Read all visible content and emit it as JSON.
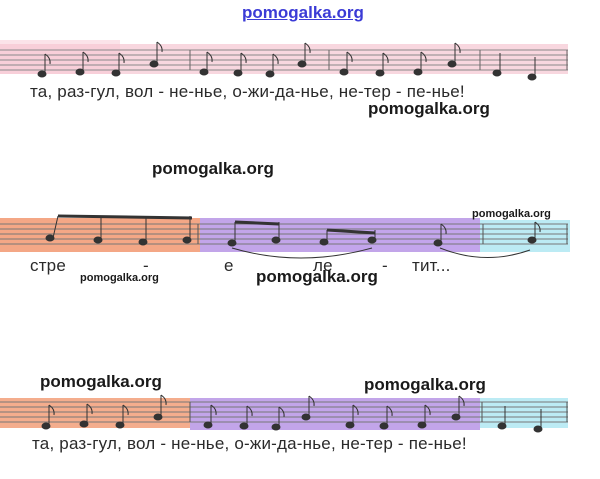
{
  "header": {
    "site_title": "pomogalka.org"
  },
  "watermarks": {
    "w1": "pomogalka.org",
    "w2": "pomogalka.org",
    "w3": "pomogalka.org",
    "w4": "pomogalka.org",
    "w5": "pomogalka.org",
    "w6": "pomogalka.org",
    "w7": "pomogalka.org"
  },
  "staves": [
    {
      "lyrics": "та, раз-гул, вол - не-нье, о-жи-да-нье, не-тер - пе-нье!"
    },
    {
      "lyrics": [
        "стре",
        "-",
        "е",
        "ле",
        "-",
        "тит..."
      ]
    },
    {
      "lyrics": "та, раз-гул, вол - не-нье, о-жи-да-нье, не-тер - пе-нье!"
    }
  ],
  "colors": {
    "pink": "#f2b7c4",
    "orange": "#f08a5d",
    "purple": "#a87fe0",
    "cyan": "#9fe3ef",
    "staff_line": "#8a8a8a",
    "note": "#333333"
  }
}
